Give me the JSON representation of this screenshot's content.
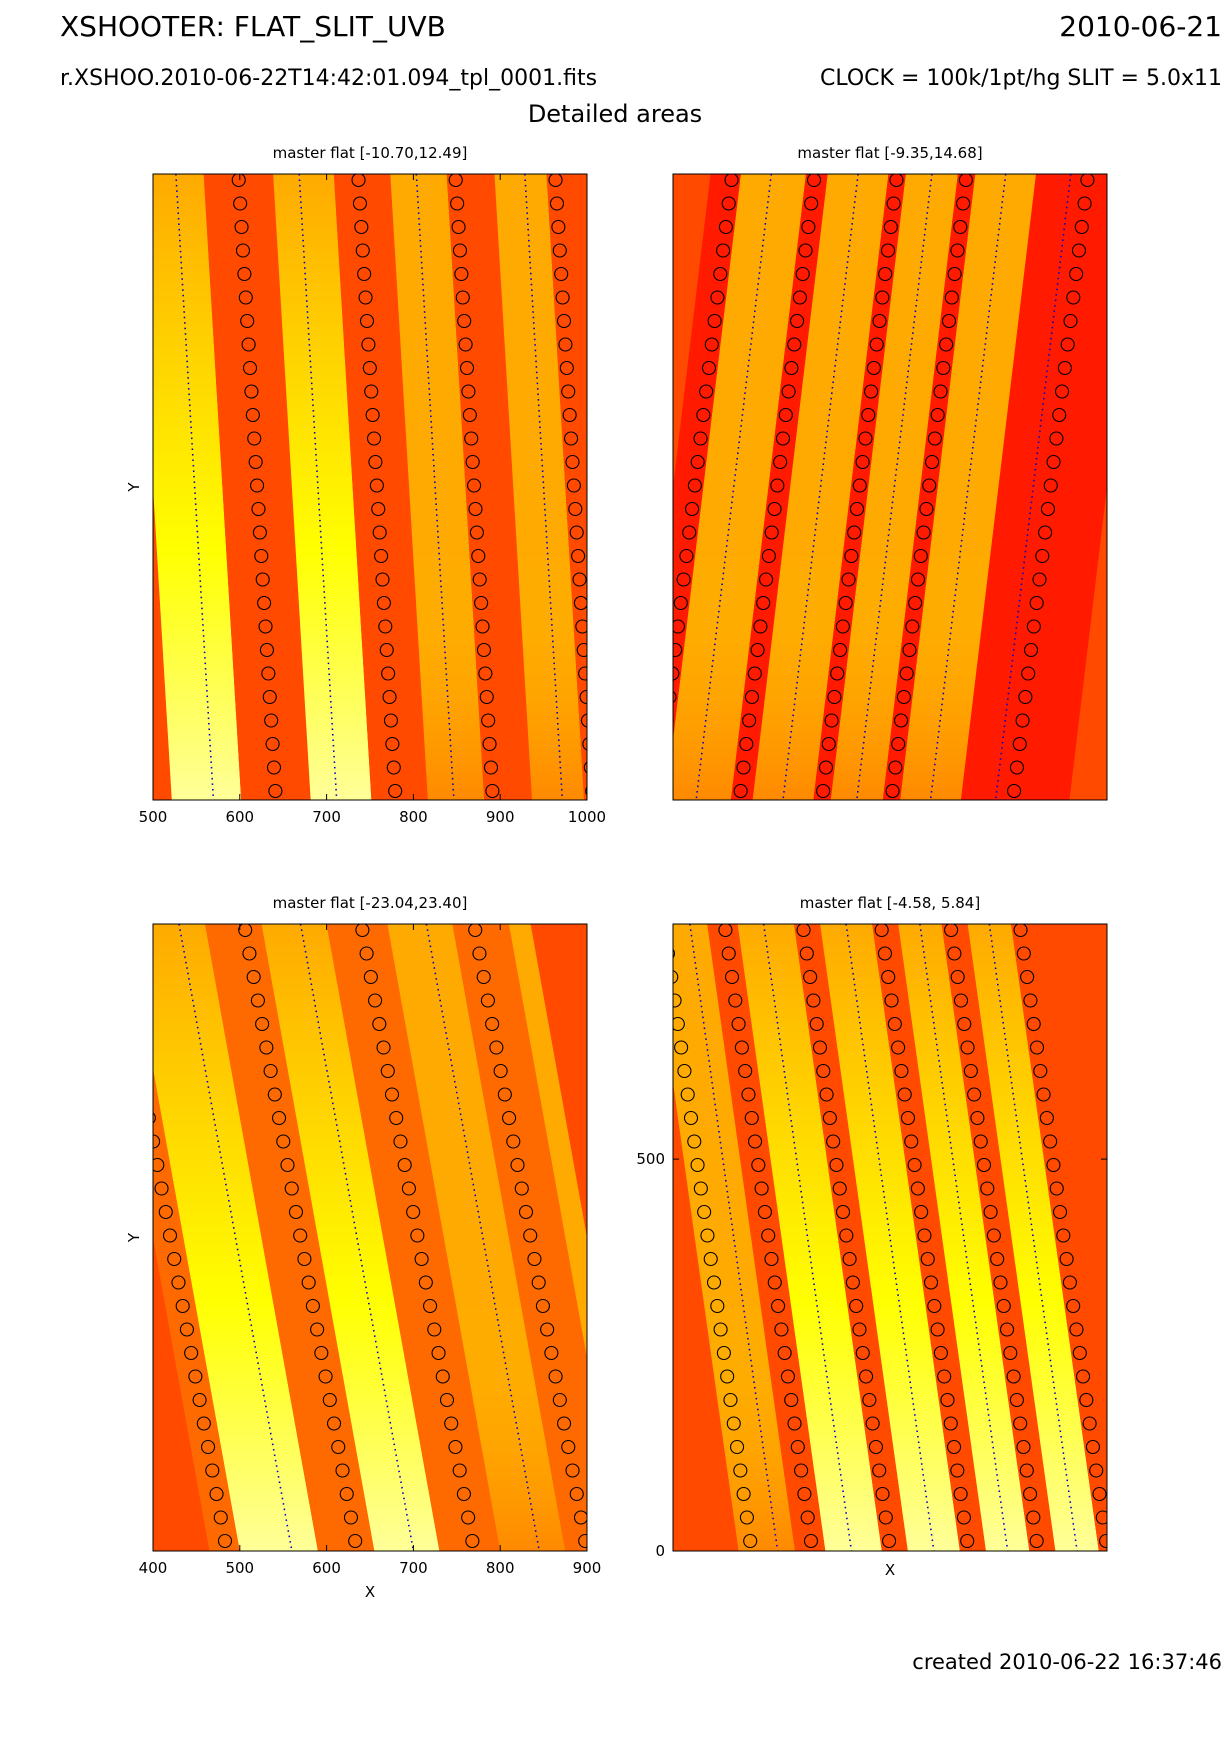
{
  "header": {
    "title": "XSHOOTER: FLAT_SLIT_UVB",
    "date": "2010-06-21",
    "filename": "r.XSHOO.2010-06-22T14:42:01.094_tpl_0001.fits",
    "setup": "CLOCK = 100k/1pt/hg SLIT = 5.0x11",
    "subtitle": "Detailed areas"
  },
  "footer": {
    "created": "created 2010-06-22 16:37:46"
  },
  "colors": {
    "red": "#ff1a00",
    "dark_orange": "#ff4a00",
    "orange": "#ff6a00",
    "amber": "#ffaa00",
    "yellow": "#ffff00",
    "pale_yellow": "#ffff99",
    "trace_dots": "#0000cc",
    "markers": "#000000"
  },
  "chart_data": [
    {
      "type": "heatmap",
      "title": "master flat [-10.70,12.49]",
      "xlabel": "",
      "ylabel": "Y",
      "xlim": [
        500,
        1000
      ],
      "x_ticks": [
        "500",
        "600",
        "700",
        "800",
        "900",
        "1000"
      ],
      "y_ticks": [],
      "stripes": [
        {
          "left": 500,
          "right": 580,
          "color": "yellow"
        },
        {
          "left": 580,
          "right": 660,
          "color": "dark_orange"
        },
        {
          "left": 660,
          "right": 730,
          "color": "yellow"
        },
        {
          "left": 730,
          "right": 795,
          "color": "dark_orange"
        },
        {
          "left": 795,
          "right": 860,
          "color": "amber"
        },
        {
          "left": 860,
          "right": 915,
          "color": "dark_orange"
        },
        {
          "left": 915,
          "right": 975,
          "color": "amber"
        },
        {
          "left": 975,
          "right": 1000,
          "color": "dark_orange"
        }
      ],
      "circle_columns": [
        620,
        758,
        870,
        985
      ],
      "dotted_traces": [
        548,
        690,
        825,
        950
      ],
      "tilt": 0.06
    },
    {
      "type": "heatmap",
      "title": "master flat [-9.35,14.68]",
      "xlabel": "",
      "ylabel": "",
      "xlim": [
        0,
        100
      ],
      "x_ticks": [],
      "y_ticks": [],
      "stripes": [
        {
          "left": 0,
          "right": 7,
          "color": "red"
        },
        {
          "left": 7,
          "right": 22,
          "color": "amber"
        },
        {
          "left": 22,
          "right": 27,
          "color": "red"
        },
        {
          "left": 27,
          "right": 41,
          "color": "amber"
        },
        {
          "left": 41,
          "right": 45,
          "color": "red"
        },
        {
          "left": 45,
          "right": 57,
          "color": "amber"
        },
        {
          "left": 57,
          "right": 61,
          "color": "red"
        },
        {
          "left": 61,
          "right": 75,
          "color": "amber"
        },
        {
          "left": 75,
          "right": 100,
          "color": "red"
        }
      ],
      "circle_columns": [
        5,
        24,
        43,
        59,
        87
      ],
      "dotted_traces": [
        14,
        34,
        51,
        68,
        83
      ],
      "tilt": -0.12
    },
    {
      "type": "heatmap",
      "title": "master flat [-23.04,23.40]",
      "xlabel": "X",
      "ylabel": "Y",
      "xlim": [
        400,
        900
      ],
      "x_ticks": [
        "400",
        "500",
        "600",
        "700",
        "800",
        "900"
      ],
      "y_ticks": [],
      "stripes": [
        {
          "left": 400,
          "right": 435,
          "color": "orange"
        },
        {
          "left": 435,
          "right": 525,
          "color": "yellow"
        },
        {
          "left": 525,
          "right": 590,
          "color": "orange"
        },
        {
          "left": 590,
          "right": 665,
          "color": "yellow"
        },
        {
          "left": 665,
          "right": 735,
          "color": "orange"
        },
        {
          "left": 735,
          "right": 810,
          "color": "amber"
        },
        {
          "left": 810,
          "right": 875,
          "color": "orange"
        },
        {
          "left": 875,
          "right": 900,
          "color": "amber"
        }
      ],
      "circle_columns": [
        420,
        570,
        705,
        835
      ],
      "dotted_traces": [
        495,
        635,
        780
      ],
      "tilt": 0.18
    },
    {
      "type": "heatmap",
      "title": "master flat [-4.58, 5.84]",
      "xlabel": "X",
      "ylabel": "",
      "xlim": [
        0,
        100
      ],
      "ylim": [
        0,
        800
      ],
      "x_ticks": [],
      "y_ticks": [
        "0",
        "500"
      ],
      "stripes": [
        {
          "left": 0,
          "right": 5,
          "color": "dark_orange"
        },
        {
          "left": 5,
          "right": 18,
          "color": "amber"
        },
        {
          "left": 18,
          "right": 25,
          "color": "dark_orange"
        },
        {
          "left": 25,
          "right": 38,
          "color": "yellow"
        },
        {
          "left": 38,
          "right": 44,
          "color": "dark_orange"
        },
        {
          "left": 44,
          "right": 56,
          "color": "yellow"
        },
        {
          "left": 56,
          "right": 62,
          "color": "dark_orange"
        },
        {
          "left": 62,
          "right": 72,
          "color": "yellow"
        },
        {
          "left": 72,
          "right": 78,
          "color": "dark_orange"
        },
        {
          "left": 78,
          "right": 88,
          "color": "yellow"
        },
        {
          "left": 88,
          "right": 100,
          "color": "dark_orange"
        }
      ],
      "circle_columns": [
        8,
        22,
        40,
        58,
        74,
        90
      ],
      "dotted_traces": [
        14,
        31,
        50,
        67,
        83
      ],
      "tilt": 0.14
    }
  ]
}
